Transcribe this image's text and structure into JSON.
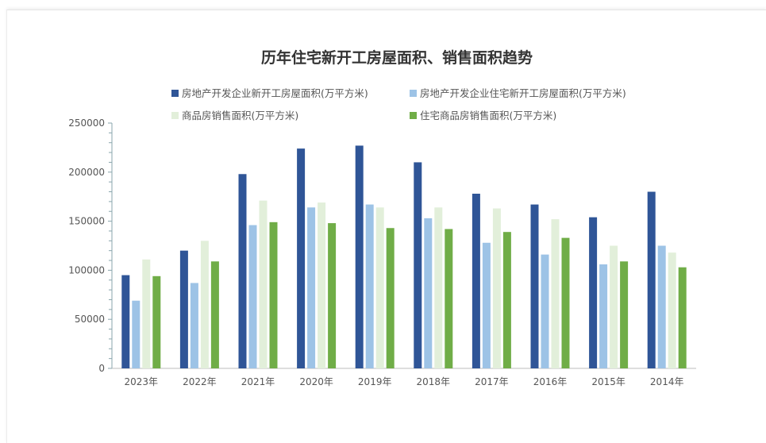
{
  "chart_data": {
    "type": "bar",
    "title": "历年住宅新开工房屋面积、销售面积趋势",
    "categories": [
      "2023年",
      "2022年",
      "2021年",
      "2020年",
      "2019年",
      "2018年",
      "2017年",
      "2016年",
      "2015年",
      "2014年"
    ],
    "ylim": [
      0,
      250000
    ],
    "yticks": [
      "0",
      "50000",
      "100000",
      "150000",
      "200000",
      "250000"
    ],
    "grid": false,
    "legend": "top",
    "series": [
      {
        "name": "房地产开发企业新开工房屋面积(万平方米)",
        "color": "#2f5597",
        "values": [
          95000,
          120000,
          198000,
          224000,
          227000,
          210000,
          178000,
          167000,
          154000,
          180000
        ]
      },
      {
        "name": "房地产开发企业住宅新开工房屋面积(万平方米)",
        "color": "#9dc3e6",
        "values": [
          69000,
          87000,
          146000,
          164000,
          167000,
          153000,
          128000,
          116000,
          106000,
          125000
        ]
      },
      {
        "name": "商品房销售面积(万平方米)",
        "color": "#e2efda",
        "values": [
          111000,
          130000,
          171000,
          169000,
          164000,
          164000,
          163000,
          152000,
          125000,
          118000
        ]
      },
      {
        "name": "住宅商品房销售面积(万平方米)",
        "color": "#70ad47",
        "values": [
          94000,
          109000,
          149000,
          148000,
          143000,
          142000,
          139000,
          133000,
          109000,
          103000
        ]
      }
    ]
  }
}
